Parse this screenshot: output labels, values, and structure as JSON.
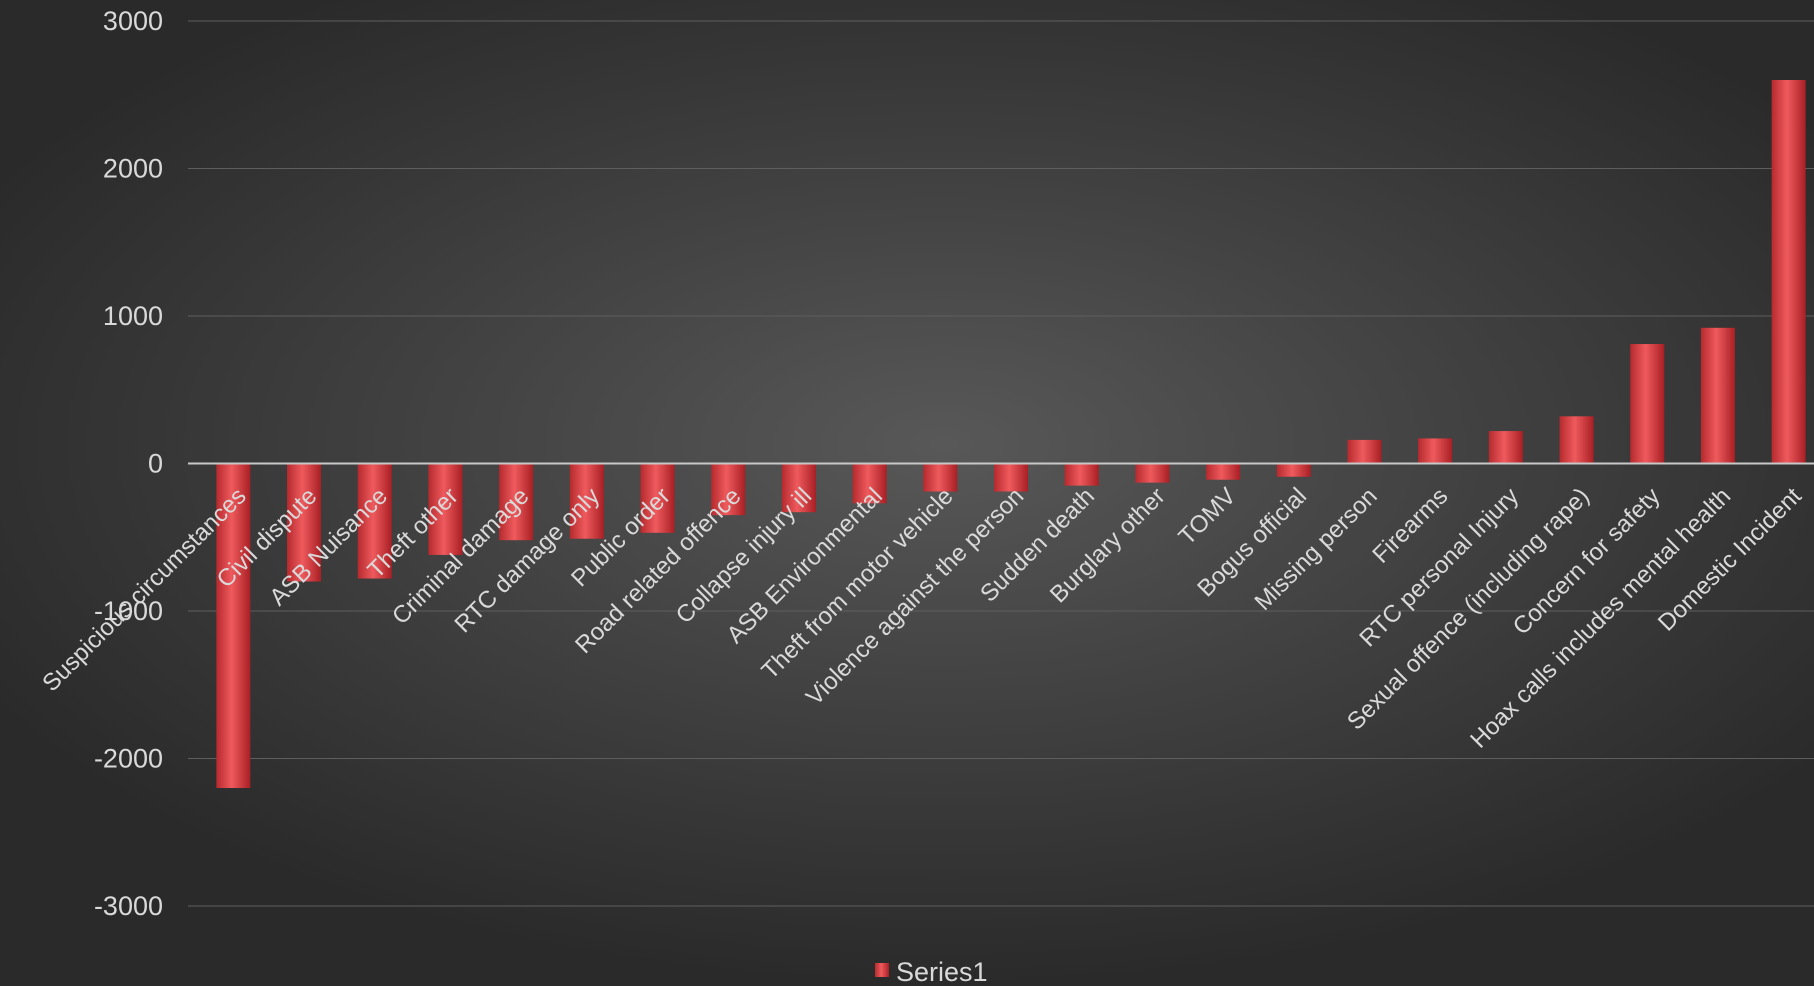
{
  "chart_data": {
    "type": "bar",
    "categories": [
      "Suspicious circumstances",
      "Civil dispute",
      "ASB Nuisance",
      "Theft other",
      "Criminal damage",
      "RTC damage only",
      "Public order",
      "Road related offence",
      "Collapse injury ill",
      "ASB Environmental",
      "Theft from motor vehicle",
      "Violence against the person",
      "Sudden death",
      "Burglary other",
      "TOMV",
      "Bogus official",
      "Missing person",
      "Firearms",
      "RTC personal Injury",
      "Sexual offence (including rape)",
      "Concern for safety",
      "Hoax calls includes mental health",
      "Domestic Incident"
    ],
    "series": [
      {
        "name": "Series1",
        "values": [
          -2200,
          -800,
          -780,
          -620,
          -520,
          -510,
          -470,
          -350,
          -330,
          -270,
          -190,
          -190,
          -150,
          -130,
          -110,
          -90,
          160,
          170,
          220,
          320,
          810,
          920,
          2600
        ]
      }
    ],
    "title": "",
    "xlabel": "",
    "ylabel": "",
    "ylim": [
      -3000,
      3000
    ],
    "yticks": [
      3000,
      2000,
      1000,
      0,
      -1000,
      -2000,
      -3000
    ],
    "grid": true,
    "legend_position": "bottom",
    "colors": {
      "bar": "#d9363a",
      "bar_light": "#f06a6c",
      "bar_dark": "#a81f24",
      "gridline": "#5e5e5e",
      "zero_line": "#c8c8c8",
      "text": "#d9d9d9"
    }
  }
}
